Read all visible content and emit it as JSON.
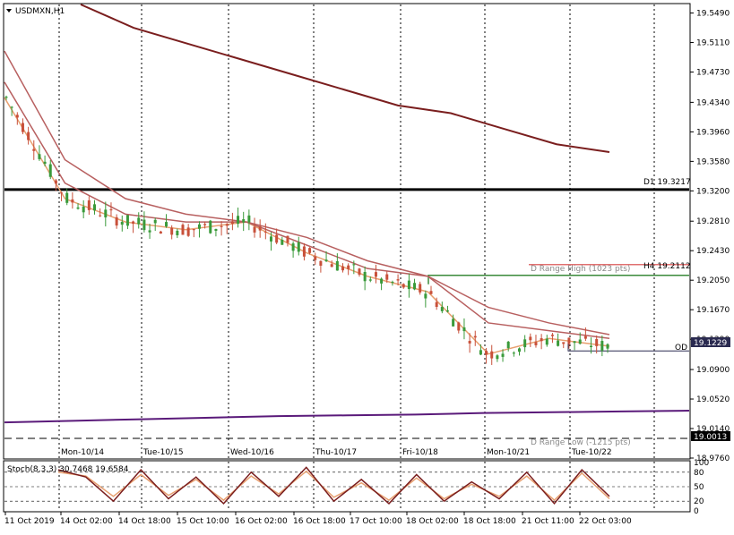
{
  "main_chart": {
    "title": "USDMXN,H1",
    "colors": {
      "bull": "#3a9a3a",
      "bear": "#c8503a",
      "ema_fast": "#e8a070",
      "ema_mid": "#b86060",
      "ema_slow": "#7a1e1e",
      "long_ma": "#5a1a7a",
      "level": "#000000"
    },
    "price_axis": [
      "19.5490",
      "19.5110",
      "19.4730",
      "19.4340",
      "19.3960",
      "19.3580",
      "19.3200",
      "19.2810",
      "19.2430",
      "19.2050",
      "19.1670",
      "19.1290",
      "19.0900",
      "19.0520",
      "19.0140",
      "18.9760"
    ],
    "date_labels": [
      "Mon-10/14",
      "Tue-10/15",
      "Wed-10/16",
      "Thu-10/17",
      "Fri-10/18",
      "Mon-10/21",
      "Tue-10/22"
    ],
    "levels": {
      "d1": {
        "label": "D1 19.3217",
        "value": 19.3217
      },
      "h4": {
        "label": "H4 19.2112",
        "value": 19.2112
      },
      "d_range_high": {
        "label": "D Range High (1023 pts)",
        "value": 19.2112
      },
      "d_range_low": {
        "label": "D Range Low (-1215 pts)",
        "value": 19.0013
      },
      "od": {
        "label": "OD",
        "value": 19.114
      },
      "current": {
        "label": "19.1229",
        "value": 19.1229
      },
      "low_price": {
        "label": "19.0013",
        "value": 19.0013
      }
    }
  },
  "chart_data": {
    "type": "line",
    "title": "USDMXN,H1",
    "ylim": [
      18.976,
      19.56
    ],
    "x": [
      "11 Oct 2019",
      "14 Oct 02:00",
      "14 Oct 18:00",
      "15 Oct 10:00",
      "16 Oct 02:00",
      "16 Oct 18:00",
      "17 Oct 10:00",
      "18 Oct 02:00",
      "18 Oct 18:00",
      "21 Oct 11:00",
      "22 Oct 03:00"
    ],
    "series": [
      {
        "values": [
          19.44,
          19.31,
          19.28,
          19.27,
          19.28,
          19.24,
          19.21,
          19.19,
          19.11,
          19.13,
          19.12
        ]
      },
      {
        "values": [
          19.46,
          19.33,
          19.29,
          19.28,
          19.28,
          19.25,
          19.22,
          19.21,
          19.15,
          19.14,
          19.13
        ]
      },
      {
        "values": [
          19.5,
          19.36,
          19.31,
          19.29,
          19.28,
          19.26,
          19.23,
          19.21,
          19.17,
          19.15,
          19.135
        ]
      },
      {
        "values": [
          19.56,
          19.53,
          19.51,
          19.49,
          19.47,
          19.45,
          19.43,
          19.42,
          19.4,
          19.38,
          19.37
        ]
      },
      {
        "values": [
          19.022,
          19.024,
          19.026,
          19.028,
          19.03,
          19.031,
          19.032,
          19.034,
          19.035,
          19.036,
          19.037
        ]
      }
    ],
    "stochastic": {
      "label": "Stoch(8,3,3) 30.7468 19.6584",
      "ylim": [
        0,
        100
      ],
      "levels": [
        "100",
        "80",
        "50",
        "20",
        "0"
      ],
      "main": [
        85,
        70,
        20,
        85,
        25,
        70,
        15,
        80,
        30,
        90,
        20,
        65,
        15,
        75,
        20,
        60,
        25,
        80,
        15,
        85,
        30
      ],
      "signal": [
        80,
        72,
        30,
        75,
        32,
        65,
        22,
        72,
        35,
        82,
        28,
        58,
        22,
        68,
        25,
        55,
        30,
        72,
        22,
        78,
        25
      ]
    }
  }
}
